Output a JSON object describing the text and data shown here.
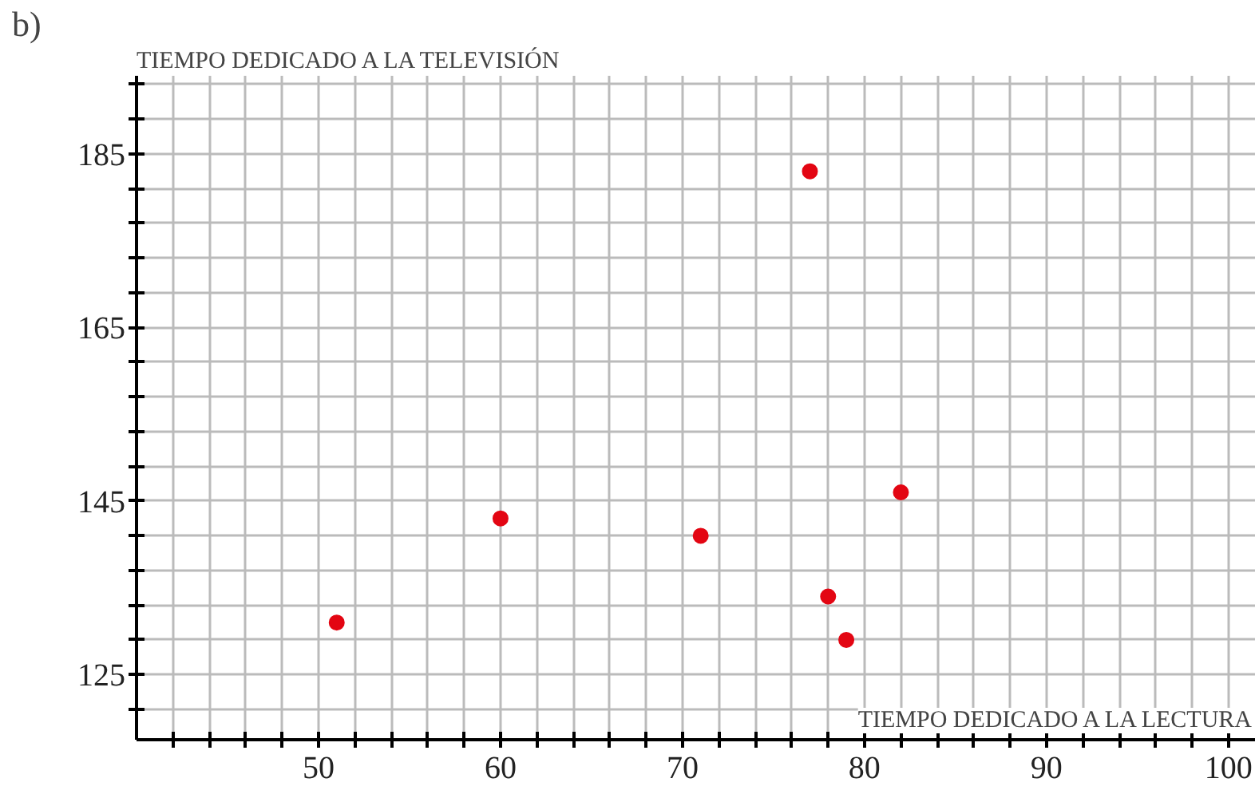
{
  "chart_data": {
    "type": "scatter",
    "title": "b)",
    "xlabel": "TIEMPO DEDICADO A LA LECTURA",
    "ylabel": "TIEMPO DEDICADO A LA TELEVISIÓN",
    "x": [
      51,
      60,
      71,
      77,
      78,
      79,
      82
    ],
    "series": [
      {
        "color": "#e30613",
        "values": [
          131,
          143,
          141,
          183,
          134,
          129,
          146
        ]
      }
    ],
    "marker": "circle",
    "grid": true,
    "xlim": [
      40,
      101.5
    ],
    "ylim": [
      117.5,
      194
    ],
    "xticks": [
      {
        "value": 42,
        "label": null
      },
      {
        "value": 44,
        "label": null
      },
      {
        "value": 46,
        "label": null
      },
      {
        "value": 48,
        "label": null
      },
      50,
      {
        "value": 52,
        "label": null
      },
      {
        "value": 54,
        "label": null
      },
      {
        "value": 56,
        "label": null
      },
      {
        "value": 58,
        "label": null
      },
      60,
      {
        "value": 62,
        "label": null
      },
      {
        "value": 64,
        "label": null
      },
      {
        "value": 66,
        "label": null
      },
      {
        "value": 68,
        "label": null
      },
      70,
      {
        "value": 72,
        "label": null
      },
      {
        "value": 74,
        "label": null
      },
      {
        "value": 76,
        "label": null
      },
      {
        "value": 78,
        "label": null
      },
      80,
      {
        "value": 82,
        "label": null
      },
      {
        "value": 84,
        "label": null
      },
      {
        "value": 86,
        "label": null
      },
      {
        "value": 88,
        "label": null
      },
      90,
      {
        "value": 92,
        "label": null
      },
      {
        "value": 94,
        "label": null
      },
      {
        "value": 96,
        "label": null
      },
      {
        "value": 98,
        "label": null
      },
      100
    ],
    "yticks": [
      {
        "value": 121,
        "label": null
      },
      125,
      {
        "value": 129,
        "label": null
      },
      {
        "value": 133,
        "label": null
      },
      {
        "value": 137,
        "label": null
      },
      {
        "value": 141,
        "label": null
      },
      145,
      {
        "value": 149,
        "label": null
      },
      {
        "value": 153,
        "label": null
      },
      {
        "value": 157,
        "label": null
      },
      {
        "value": 161,
        "label": null
      },
      165,
      {
        "value": 169,
        "label": null
      },
      {
        "value": 173,
        "label": null
      },
      {
        "value": 177,
        "label": null
      },
      {
        "value": 181,
        "label": null
      },
      185,
      {
        "value": 189,
        "label": null
      },
      {
        "value": 193,
        "label": null
      }
    ]
  }
}
